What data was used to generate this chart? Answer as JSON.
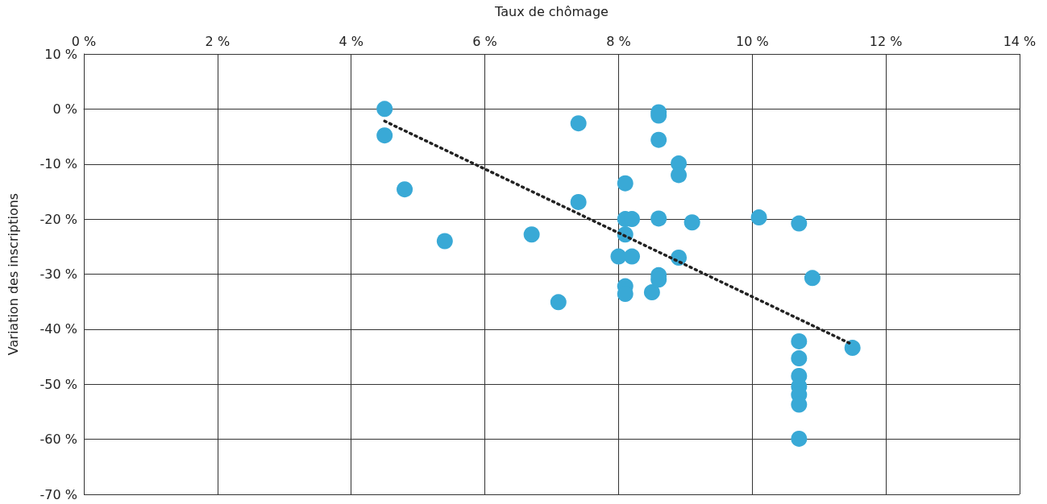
{
  "chart_data": {
    "type": "scatter",
    "xlabel": "Taux de chômage",
    "ylabel": "Variation des inscriptions",
    "marker": "circle",
    "grid": true,
    "xlim": [
      0,
      14
    ],
    "ylim": [
      -70,
      10
    ],
    "xticks": [
      {
        "value": 0,
        "label": "0 %"
      },
      {
        "value": 2,
        "label": "2 %"
      },
      {
        "value": 4,
        "label": "4 %"
      },
      {
        "value": 6,
        "label": "6 %"
      },
      {
        "value": 8,
        "label": "8 %"
      },
      {
        "value": 10,
        "label": "10 %"
      },
      {
        "value": 12,
        "label": "12 %"
      },
      {
        "value": 14,
        "label": "14 %"
      }
    ],
    "yticks": [
      {
        "value": 10,
        "label": "10 %"
      },
      {
        "value": 0,
        "label": "0 %"
      },
      {
        "value": -10,
        "label": "-10 %"
      },
      {
        "value": -20,
        "label": "-20 %"
      },
      {
        "value": -30,
        "label": "-30 %"
      },
      {
        "value": -40,
        "label": "-40 %"
      },
      {
        "value": -50,
        "label": "-50 %"
      },
      {
        "value": -60,
        "label": "-60 %"
      },
      {
        "value": -70,
        "label": "-70 %"
      }
    ],
    "series": [
      {
        "color": "#39a9d6",
        "x": [
          4.5,
          4.5,
          4.8,
          5.4,
          6.7,
          7.1,
          7.4,
          7.4,
          8.1,
          8.1,
          8.2,
          8.1,
          8.0,
          8.2,
          8.1,
          8.1,
          8.5,
          8.6,
          8.6,
          8.6,
          8.9,
          8.9,
          8.6,
          8.9,
          8.6,
          8.6,
          9.1,
          10.1,
          10.7,
          10.9,
          11.5,
          10.7,
          10.7,
          10.7,
          10.7,
          10.7,
          10.7,
          10.7
        ],
        "values": [
          0,
          -4.8,
          -14.6,
          -24,
          -22.8,
          -35.1,
          -2.6,
          -16.9,
          -13.5,
          -20,
          -20,
          -22.8,
          -26.8,
          -26.8,
          -32.2,
          -33.6,
          -33.3,
          -0.6,
          -1.2,
          -5.6,
          -9.9,
          -12,
          -19.9,
          -27,
          -30.2,
          -31,
          -20.6,
          -19.7,
          -20.8,
          -30.7,
          -43.4,
          -42.2,
          -45.3,
          -48.5,
          -50.4,
          -51.9,
          -53.7,
          -59.9
        ]
      },
      {
        "type": "line",
        "color": "#222222",
        "line_style": "dotted",
        "marker": "none",
        "x": [
          4.5,
          11.5
        ],
        "values": [
          -2.2,
          -42.8
        ]
      }
    ]
  }
}
